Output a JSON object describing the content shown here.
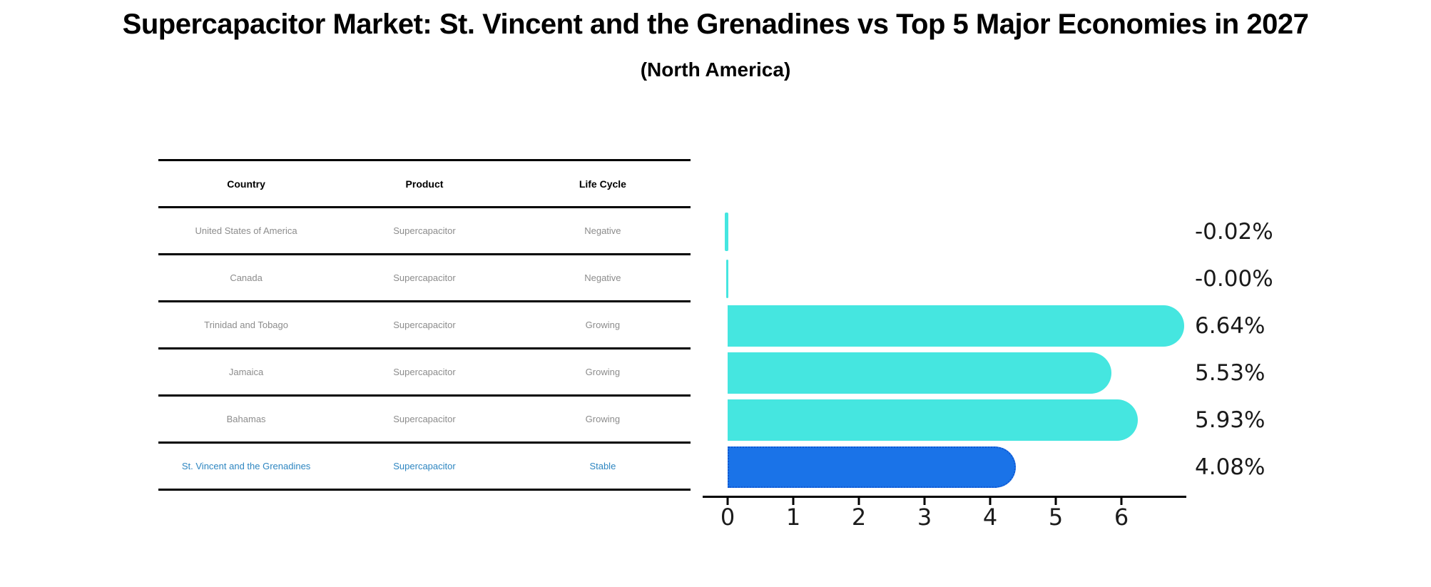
{
  "title": "Supercapacitor Market: St. Vincent and the Grenadines vs Top 5 Major Economies in 2027",
  "subtitle": "(North America)",
  "table": {
    "columns": [
      "Country",
      "Product",
      "Life Cycle"
    ],
    "rows": [
      {
        "country": "United States of America",
        "product": "Supercapacitor",
        "life_cycle": "Negative"
      },
      {
        "country": "Canada",
        "product": "Supercapacitor",
        "life_cycle": "Negative"
      },
      {
        "country": "Trinidad and Tobago",
        "product": "Supercapacitor",
        "life_cycle": "Growing"
      },
      {
        "country": "Jamaica",
        "product": "Supercapacitor",
        "life_cycle": "Growing"
      },
      {
        "country": "Bahamas",
        "product": "Supercapacitor",
        "life_cycle": "Growing"
      },
      {
        "country": "St. Vincent and the Grenadines",
        "product": "Supercapacitor",
        "life_cycle": "Stable"
      }
    ]
  },
  "chart_data": {
    "type": "bar",
    "orientation": "horizontal",
    "title": "Supercapacitor Market: St. Vincent and the Grenadines vs Top 5 Major Economies in 2027",
    "subtitle": "(North America)",
    "categories": [
      "United States of America",
      "Canada",
      "Trinidad and Tobago",
      "Jamaica",
      "Bahamas",
      "St. Vincent and the Grenadines"
    ],
    "values": [
      -0.02,
      -0.0,
      6.64,
      5.53,
      5.93,
      4.08
    ],
    "value_labels": [
      "-0.02%",
      "-0.00%",
      "6.64%",
      "5.53%",
      "5.93%",
      "4.08%"
    ],
    "xlabel": "",
    "ylabel": "",
    "xlim": [
      0,
      7
    ],
    "xticks": [
      "0",
      "1",
      "2",
      "3",
      "4",
      "5",
      "6"
    ],
    "grid": false,
    "legend": "none",
    "bar_colors": [
      "#45E6E0",
      "#45E6E0",
      "#45E6E0",
      "#45E6E0",
      "#45E6E0",
      "#1A73E8"
    ],
    "highlight_index": 5,
    "highlight_border_color": "#1057D2"
  },
  "colors": {
    "turquoise_bar": "#45E6E0",
    "highlight_bar": "#1A73E8",
    "highlight_bar_border": "#1057D2",
    "accent_text": "#2E86C1",
    "row_text": "#8C8C8C",
    "header_text": "#000000",
    "axis": "#000000",
    "background": "#FFFFFF"
  }
}
